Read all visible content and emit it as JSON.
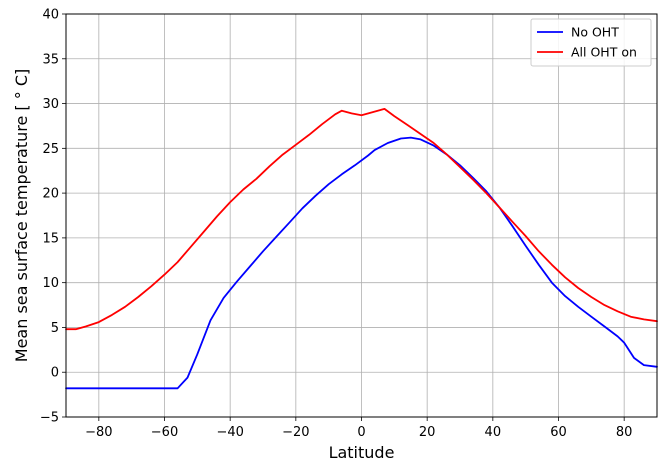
{
  "chart_data": {
    "type": "line",
    "xlabel": "Latitude",
    "ylabel": "Mean sea surface temperature [$^\\circ C$]",
    "ylabel_display": "Mean sea surface temperature [ ° C]",
    "xlim": [
      -90,
      90
    ],
    "ylim": [
      -5,
      40
    ],
    "xticks": [
      -80,
      -60,
      -40,
      -20,
      0,
      20,
      40,
      60,
      80
    ],
    "xtick_labels": [
      "−80",
      "−60",
      "−40",
      "−20",
      "0",
      "20",
      "40",
      "60",
      "80"
    ],
    "yticks": [
      -5,
      0,
      5,
      10,
      15,
      20,
      25,
      30,
      35,
      40
    ],
    "ytick_labels": [
      "−5",
      "0",
      "5",
      "10",
      "15",
      "20",
      "25",
      "30",
      "35",
      "40"
    ],
    "grid": true,
    "legend_position": "top-right",
    "series": [
      {
        "name": "No OHT",
        "color": "#0000ff",
        "points": [
          [
            -90,
            -1.8
          ],
          [
            -80,
            -1.8
          ],
          [
            -70,
            -1.8
          ],
          [
            -60,
            -1.8
          ],
          [
            -56,
            -1.8
          ],
          [
            -53,
            -0.6
          ],
          [
            -50,
            2.0
          ],
          [
            -46,
            5.8
          ],
          [
            -42,
            8.3
          ],
          [
            -38,
            10.1
          ],
          [
            -34,
            11.8
          ],
          [
            -30,
            13.5
          ],
          [
            -26,
            15.1
          ],
          [
            -22,
            16.7
          ],
          [
            -18,
            18.3
          ],
          [
            -14,
            19.7
          ],
          [
            -10,
            21.0
          ],
          [
            -6,
            22.1
          ],
          [
            -2,
            23.1
          ],
          [
            2,
            24.2
          ],
          [
            4,
            24.8
          ],
          [
            8,
            25.6
          ],
          [
            12,
            26.1
          ],
          [
            15,
            26.2
          ],
          [
            18,
            26.0
          ],
          [
            22,
            25.3
          ],
          [
            26,
            24.3
          ],
          [
            30,
            23.1
          ],
          [
            34,
            21.7
          ],
          [
            38,
            20.2
          ],
          [
            42,
            18.4
          ],
          [
            46,
            16.3
          ],
          [
            50,
            14.1
          ],
          [
            54,
            12.0
          ],
          [
            58,
            10.0
          ],
          [
            62,
            8.5
          ],
          [
            66,
            7.3
          ],
          [
            70,
            6.2
          ],
          [
            74,
            5.1
          ],
          [
            78,
            4.0
          ],
          [
            80,
            3.3
          ],
          [
            83,
            1.6
          ],
          [
            86,
            0.8
          ],
          [
            90,
            0.6
          ]
        ]
      },
      {
        "name": "All OHT on",
        "color": "#ff0000",
        "points": [
          [
            -90,
            4.8
          ],
          [
            -87,
            4.8
          ],
          [
            -84,
            5.1
          ],
          [
            -80,
            5.6
          ],
          [
            -76,
            6.4
          ],
          [
            -72,
            7.3
          ],
          [
            -68,
            8.4
          ],
          [
            -64,
            9.6
          ],
          [
            -60,
            10.9
          ],
          [
            -56,
            12.3
          ],
          [
            -52,
            14.0
          ],
          [
            -48,
            15.7
          ],
          [
            -44,
            17.4
          ],
          [
            -40,
            19.0
          ],
          [
            -36,
            20.4
          ],
          [
            -32,
            21.6
          ],
          [
            -28,
            23.0
          ],
          [
            -24,
            24.3
          ],
          [
            -20,
            25.4
          ],
          [
            -16,
            26.5
          ],
          [
            -12,
            27.7
          ],
          [
            -8,
            28.8
          ],
          [
            -6,
            29.2
          ],
          [
            -3,
            28.9
          ],
          [
            0,
            28.7
          ],
          [
            4,
            29.1
          ],
          [
            7,
            29.4
          ],
          [
            10,
            28.6
          ],
          [
            14,
            27.6
          ],
          [
            18,
            26.6
          ],
          [
            22,
            25.6
          ],
          [
            26,
            24.3
          ],
          [
            30,
            22.9
          ],
          [
            34,
            21.5
          ],
          [
            38,
            20.0
          ],
          [
            42,
            18.4
          ],
          [
            46,
            16.8
          ],
          [
            50,
            15.2
          ],
          [
            54,
            13.5
          ],
          [
            58,
            12.0
          ],
          [
            62,
            10.6
          ],
          [
            66,
            9.4
          ],
          [
            70,
            8.4
          ],
          [
            74,
            7.5
          ],
          [
            78,
            6.8
          ],
          [
            82,
            6.2
          ],
          [
            86,
            5.9
          ],
          [
            90,
            5.7
          ]
        ]
      }
    ]
  }
}
